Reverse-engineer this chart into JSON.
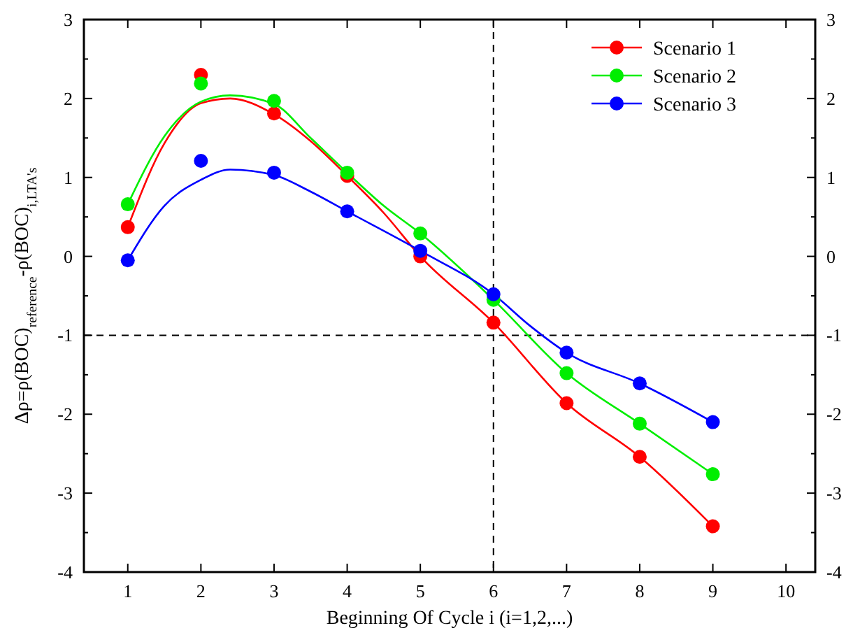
{
  "chart_data": {
    "type": "scatter",
    "xlabel": "Beginning Of Cycle i (i=1,2,...)",
    "ylabel": "Δρ=ρ(BOC)$_{reference}$-ρ(BOC)$_{i,LTA's}$",
    "xlim": [
      0.4,
      10.4
    ],
    "xticks": [
      1,
      2,
      3,
      4,
      5,
      6,
      7,
      8,
      9,
      10
    ],
    "ylim": [
      -4,
      3
    ],
    "yticks": [
      -4,
      -3,
      -2,
      -1,
      0,
      1,
      2,
      3
    ],
    "y2lim": [
      -4,
      3
    ],
    "y2ticks": [
      -4,
      -3,
      -2,
      -1,
      0,
      1,
      2,
      3
    ],
    "x": [
      1,
      2,
      3,
      4,
      5,
      6,
      7,
      8,
      9
    ],
    "legend": "top right",
    "marker": "circle",
    "grid": false,
    "series": [
      {
        "name": "Scenario 1",
        "color": "#ff0000",
        "values": [
          0.37,
          2.3,
          1.81,
          1.02,
          0.0,
          -0.84,
          -1.86,
          -2.54,
          -3.42
        ]
      },
      {
        "name": "Scenario 2",
        "color": "#00ee00",
        "values": [
          0.66,
          2.19,
          1.97,
          1.06,
          0.29,
          -0.55,
          -1.48,
          -2.12,
          -2.76
        ]
      },
      {
        "name": "Scenario 3",
        "color": "#0000ff",
        "values": [
          -0.05,
          1.21,
          1.06,
          0.57,
          0.07,
          -0.48,
          -1.22,
          -1.61,
          -2.1
        ]
      },
      {
        "type": "line",
        "marker": "none",
        "color": "#ff0000",
        "x": [
          1,
          1.5,
          2,
          2.4,
          3,
          3.5,
          4,
          4.5,
          5,
          6,
          7,
          8,
          9
        ],
        "values": [
          0.37,
          1.43,
          1.94,
          2.0,
          1.8,
          1.46,
          1.02,
          0.55,
          0.0,
          -0.84,
          -1.86,
          -2.54,
          -3.42
        ]
      },
      {
        "type": "line",
        "marker": "none",
        "color": "#00ee00",
        "x": [
          1,
          1.5,
          2,
          2.4,
          3,
          3.5,
          4,
          4.5,
          5,
          6,
          7,
          8,
          9
        ],
        "values": [
          0.66,
          1.52,
          1.96,
          2.04,
          1.93,
          1.5,
          1.06,
          0.64,
          0.29,
          -0.55,
          -1.48,
          -2.12,
          -2.76
        ]
      },
      {
        "type": "line",
        "marker": "none",
        "color": "#0000ff",
        "x": [
          1,
          1.5,
          2,
          2.4,
          3,
          3.5,
          4,
          5,
          6,
          6.5,
          7,
          8,
          9
        ],
        "values": [
          -0.05,
          0.64,
          0.97,
          1.1,
          1.03,
          0.82,
          0.57,
          0.07,
          -0.48,
          -0.88,
          -1.22,
          -1.61,
          -2.1
        ]
      }
    ],
    "ref_lines": [
      {
        "axis": "x",
        "value": 6,
        "line_style": "dashed",
        "color": "#000000"
      },
      {
        "axis": "y",
        "value": -1,
        "line_style": "dashed",
        "color": "#000000"
      }
    ]
  }
}
